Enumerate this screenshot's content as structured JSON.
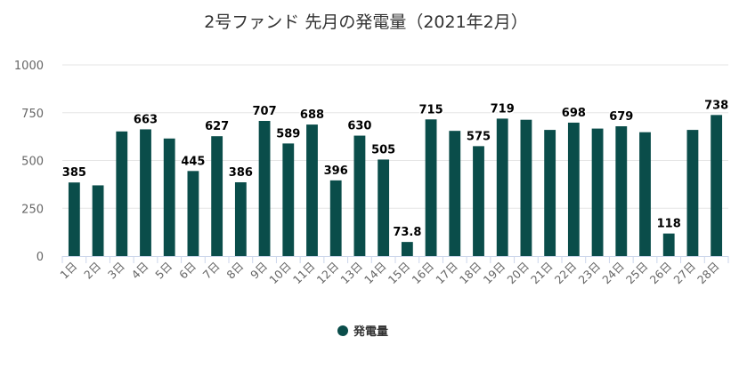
{
  "chart_data": {
    "type": "bar",
    "title": "2号ファンド 先月の発電量（2021年2月）",
    "categories": [
      "1日",
      "2日",
      "3日",
      "4日",
      "5日",
      "6日",
      "7日",
      "8日",
      "9日",
      "10日",
      "11日",
      "12日",
      "13日",
      "14日",
      "15日",
      "16日",
      "17日",
      "18日",
      "19日",
      "20日",
      "21日",
      "22日",
      "23日",
      "24日",
      "25日",
      "26日",
      "27日",
      "28日"
    ],
    "series": [
      {
        "name": "発電量",
        "color": "#0a4d4a",
        "values": [
          385,
          370,
          652,
          663,
          615,
          445,
          627,
          386,
          707,
          589,
          688,
          396,
          630,
          505,
          73.8,
          715,
          655,
          575,
          719,
          713,
          660,
          698,
          667,
          679,
          648,
          118,
          660,
          738
        ],
        "data_labels": [
          "385",
          null,
          null,
          "663",
          null,
          "445",
          "627",
          "386",
          "707",
          "589",
          "688",
          "396",
          "630",
          "505",
          "73.8",
          "715",
          null,
          "575",
          "719",
          null,
          null,
          "698",
          null,
          "679",
          null,
          "118",
          null,
          "738"
        ]
      }
    ],
    "y_ticks": [
      0,
      250,
      500,
      750,
      1000
    ],
    "ylim": [
      0,
      1000
    ],
    "grid": true,
    "legend_position": "bottom-center"
  }
}
